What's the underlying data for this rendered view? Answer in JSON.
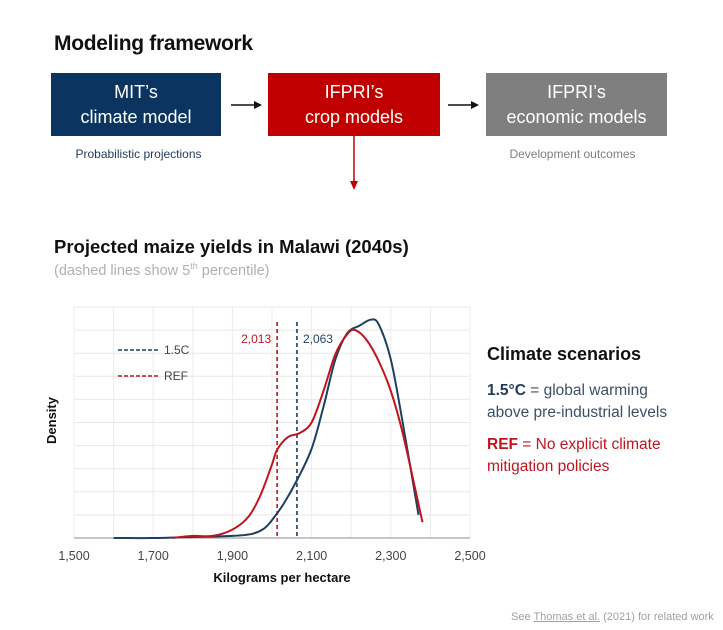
{
  "framework": {
    "title": "Modeling framework",
    "boxes": [
      {
        "line1": "MIT’s",
        "line2": "climate model",
        "caption": "Probabilistic projections",
        "color": "#0b3560"
      },
      {
        "line1": "IFPRI’s",
        "line2": "crop models",
        "caption": "",
        "color": "#c00000"
      },
      {
        "line1": "IFPRI’s",
        "line2": "economic models",
        "caption": "Development outcomes",
        "color": "#7f7f7f"
      }
    ],
    "arrow_icon": "right-arrow-icon",
    "down_arrow_icon": "down-arrow-icon"
  },
  "chart_section": {
    "title": "Projected maize yields in Malawi (2040s)",
    "note_prefix": "(dashed lines show 5",
    "note_sup": "th",
    "note_suffix": " percentile)"
  },
  "scenarios": {
    "title": "Climate scenarios",
    "items": [
      {
        "key": "1.5°C",
        "desc_first": " = global warming",
        "desc_second": "above pre-industrial levels",
        "color": "#1f3a5f"
      },
      {
        "key": "REF",
        "desc_first": " = No explicit climate",
        "desc_second": "mitigation policies",
        "color": "#c0141e"
      }
    ]
  },
  "footer": {
    "prefix": "See ",
    "link": "Thomas et al.",
    "suffix": " (2021) for related work"
  },
  "chart_data": {
    "type": "line",
    "title": "Projected maize yields in Malawi (2040s)",
    "subtitle": "(dashed lines show 5th percentile)",
    "xlabel": "Kilograms per hectare",
    "ylabel": "Density",
    "xlim": [
      1500,
      2500
    ],
    "x_ticks": [
      "1,500",
      "1,700",
      "1,900",
      "2,100",
      "2,300",
      "2,500"
    ],
    "grid": true,
    "legend": {
      "position": "upper-left",
      "entries": [
        "1.5C",
        "REF"
      ]
    },
    "series": [
      {
        "name": "1.5C",
        "color": "#1f3f5f",
        "x": [
          1600,
          1700,
          1800,
          1900,
          1950,
          1980,
          2000,
          2030,
          2063,
          2100,
          2130,
          2160,
          2190,
          2220,
          2250,
          2270,
          2300,
          2330,
          2370
        ],
        "y": [
          0.0,
          0.0,
          0.01,
          0.02,
          0.04,
          0.09,
          0.17,
          0.33,
          0.55,
          0.85,
          1.25,
          1.7,
          1.95,
          2.02,
          2.08,
          2.03,
          1.7,
          1.1,
          0.22
        ]
      },
      {
        "name": "REF",
        "color": "#c0141e",
        "x": [
          1750,
          1800,
          1850,
          1900,
          1940,
          1970,
          2000,
          2013,
          2040,
          2070,
          2100,
          2130,
          2160,
          2190,
          2210,
          2240,
          2270,
          2300,
          2330,
          2380
        ],
        "y": [
          0.0,
          0.02,
          0.02,
          0.08,
          0.2,
          0.4,
          0.7,
          0.84,
          0.96,
          1.0,
          1.1,
          1.4,
          1.75,
          1.94,
          1.98,
          1.88,
          1.68,
          1.4,
          1.0,
          0.15
        ]
      }
    ],
    "annotations": [
      {
        "label": "2,013",
        "x": 2013,
        "series": "REF",
        "style": "dashed vertical"
      },
      {
        "label": "2,063",
        "x": 2063,
        "series": "1.5C",
        "style": "dashed vertical"
      }
    ]
  }
}
